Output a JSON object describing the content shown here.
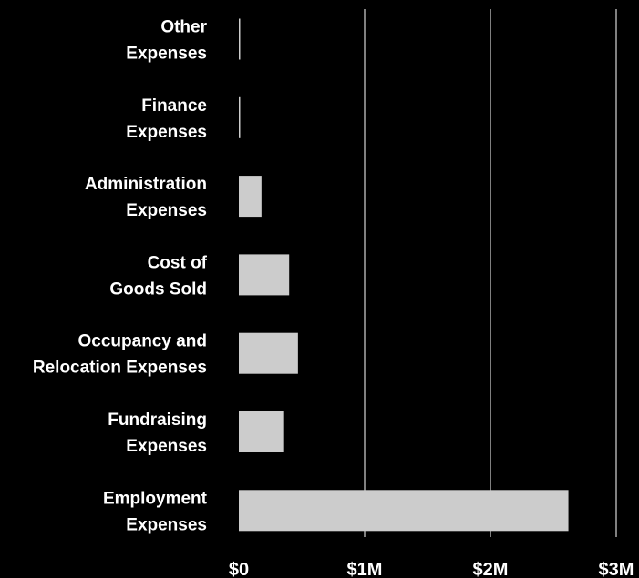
{
  "chart_data": {
    "type": "bar",
    "orientation": "horizontal",
    "categories": [
      "Other Expenses",
      "Finance Expenses",
      "Administration Expenses",
      "Cost of Goods Sold",
      "Occupancy and Relocation Expenses",
      "Fundraising Expenses",
      "Employment Expenses"
    ],
    "category_lines": [
      [
        "Other",
        "Expenses"
      ],
      [
        "Finance",
        "Expenses"
      ],
      [
        "Administration",
        "Expenses"
      ],
      [
        "Cost of",
        "Goods Sold"
      ],
      [
        "Occupancy and",
        "Relocation Expenses"
      ],
      [
        "Fundraising",
        "Expenses"
      ],
      [
        "Employment",
        "Expenses"
      ]
    ],
    "values": [
      5000,
      5000,
      180000,
      400000,
      470000,
      360000,
      2620000
    ],
    "xlim": [
      0,
      3000000
    ],
    "x_ticks": [
      0,
      1000000,
      2000000,
      3000000
    ],
    "x_tick_labels": [
      "$0",
      "$1M",
      "$2M",
      "$3M"
    ],
    "grid": "vertical",
    "title": "",
    "xlabel": "",
    "ylabel": "",
    "colors": {
      "background": "#000000",
      "bar": "#cccccc",
      "grid": "#ffffff",
      "text": "#ffffff"
    }
  }
}
